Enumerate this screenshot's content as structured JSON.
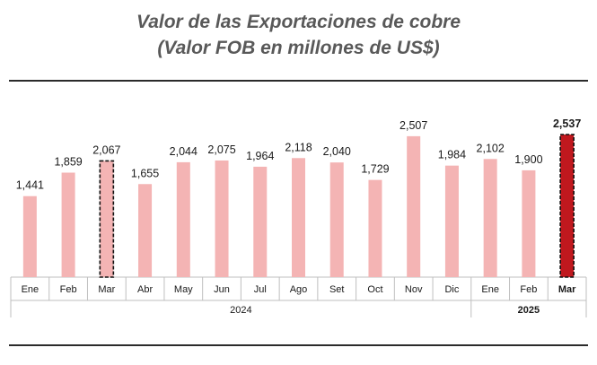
{
  "title_line1": "Valor de las Exportaciones de cobre",
  "title_line2": "(Valor FOB en millones de US$)",
  "colors": {
    "bar": "#f4b4b4",
    "bar_highlight": "#c0181e",
    "title": "#595959",
    "axis": "#bfbfbf",
    "text": "#1a1a1a"
  },
  "chart_data": {
    "type": "bar",
    "title": "Valor de las Exportaciones de cobre (Valor FOB en millones de US$)",
    "xlabel": "",
    "ylabel": "",
    "categories": [
      "Ene",
      "Feb",
      "Mar",
      "Abr",
      "May",
      "Jun",
      "Jul",
      "Ago",
      "Set",
      "Oct",
      "Nov",
      "Dic",
      "Ene",
      "Feb",
      "Mar"
    ],
    "values": [
      1441,
      1859,
      2067,
      1655,
      2044,
      2075,
      1964,
      2118,
      2040,
      1729,
      2507,
      1984,
      2102,
      1900,
      2537
    ],
    "value_labels": [
      "1,441",
      "1,859",
      "2,067",
      "1,655",
      "2,044",
      "2,075",
      "1,964",
      "2,118",
      "2,040",
      "1,729",
      "2,507",
      "1,984",
      "2,102",
      "1,900",
      "2,537"
    ],
    "groups": [
      {
        "label": "2024",
        "start": 0,
        "end": 11
      },
      {
        "label": "2025",
        "start": 12,
        "end": 14
      }
    ],
    "highlighted": [
      2,
      14
    ],
    "ylim": [
      0,
      2700
    ],
    "grid": false,
    "legend": "none"
  }
}
